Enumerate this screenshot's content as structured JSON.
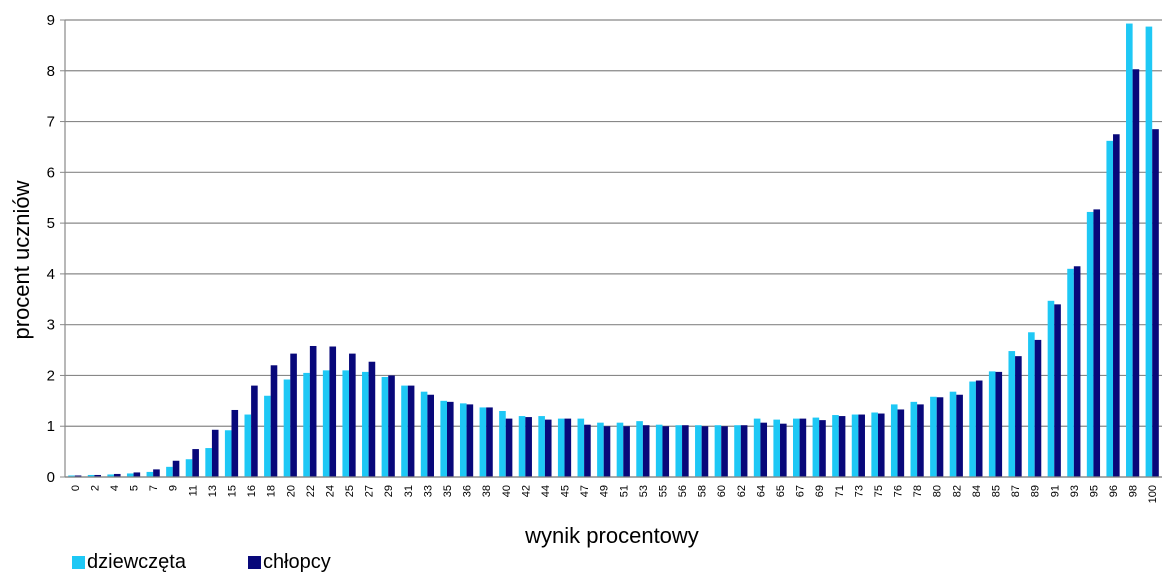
{
  "chart_data": {
    "type": "bar",
    "xlabel": "wynik procentowy",
    "ylabel": "procent uczniów",
    "ylim": [
      0,
      9
    ],
    "yticks": [
      "0",
      "1",
      "2",
      "3",
      "4",
      "5",
      "6",
      "7",
      "8",
      "9"
    ],
    "grid": true,
    "legend_position": "bottom-left",
    "categories": [
      "0",
      "2",
      "4",
      "5",
      "7",
      "9",
      "11",
      "13",
      "15",
      "16",
      "18",
      "20",
      "22",
      "24",
      "25",
      "27",
      "29",
      "31",
      "33",
      "35",
      "36",
      "38",
      "40",
      "42",
      "44",
      "45",
      "47",
      "49",
      "51",
      "53",
      "55",
      "56",
      "58",
      "60",
      "62",
      "64",
      "65",
      "67",
      "69",
      "71",
      "73",
      "75",
      "76",
      "78",
      "80",
      "82",
      "84",
      "85",
      "87",
      "89",
      "91",
      "93",
      "95",
      "96",
      "98",
      "100"
    ],
    "series": [
      {
        "name": "dziewczęta",
        "color": "#1ec8f5",
        "values": [
          0.03,
          0.04,
          0.05,
          0.07,
          0.1,
          0.2,
          0.35,
          0.57,
          0.92,
          1.23,
          1.6,
          1.92,
          2.05,
          2.1,
          2.1,
          2.07,
          1.97,
          1.8,
          1.68,
          1.5,
          1.45,
          1.37,
          1.3,
          1.2,
          1.2,
          1.15,
          1.15,
          1.07,
          1.07,
          1.1,
          1.03,
          1.02,
          1.02,
          1.02,
          1.02,
          1.15,
          1.13,
          1.15,
          1.17,
          1.22,
          1.23,
          1.27,
          1.43,
          1.48,
          1.58,
          1.68,
          1.88,
          2.08,
          2.48,
          2.85,
          3.47,
          4.1,
          5.22,
          6.62,
          8.93,
          8.87
        ]
      },
      {
        "name": "chłopcy",
        "color": "#08087a",
        "values": [
          0.03,
          0.04,
          0.06,
          0.09,
          0.15,
          0.32,
          0.55,
          0.93,
          1.32,
          1.8,
          2.2,
          2.43,
          2.58,
          2.57,
          2.43,
          2.27,
          2.0,
          1.8,
          1.62,
          1.48,
          1.43,
          1.37,
          1.15,
          1.18,
          1.13,
          1.15,
          1.03,
          1.0,
          1.0,
          1.02,
          1.0,
          1.02,
          1.0,
          1.0,
          1.02,
          1.07,
          1.05,
          1.15,
          1.12,
          1.2,
          1.23,
          1.25,
          1.33,
          1.43,
          1.57,
          1.62,
          1.9,
          2.07,
          2.38,
          2.7,
          3.4,
          4.15,
          5.27,
          6.75,
          8.03,
          6.85
        ]
      }
    ]
  }
}
